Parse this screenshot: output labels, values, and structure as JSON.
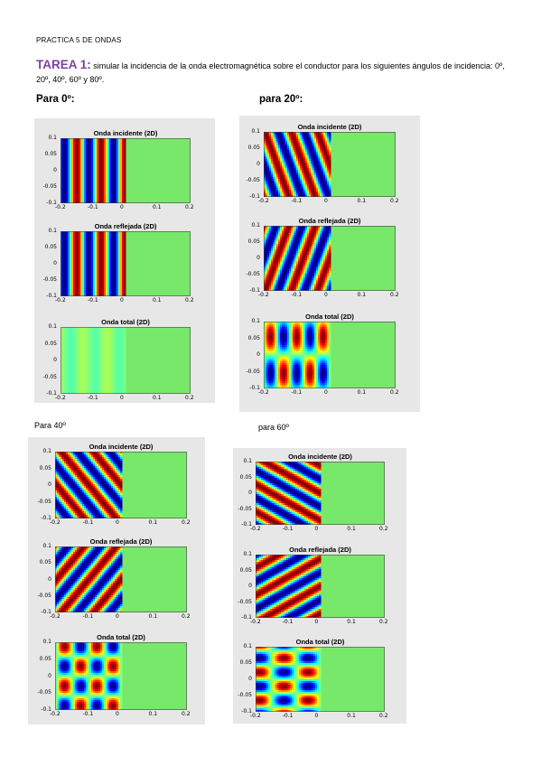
{
  "header": "PRACTICA 5 DE ONDAS",
  "task": {
    "tag": "TAREA 1:",
    "text": "simular la incidencia de la onda electromagnética sobre el conductor para los siguientes ángulos de incidencia: 0º, 20º, 40º, 60º y 80º."
  },
  "sections": [
    {
      "title": "Para 0º:",
      "angle_deg": 0
    },
    {
      "title": "para 20º:",
      "angle_deg": 20
    },
    {
      "title": "Para 40º",
      "angle_deg": 40
    },
    {
      "title": "para 60º",
      "angle_deg": 60
    }
  ],
  "plot_titles": [
    "Onda incidente (2D)",
    "Onda reflejada (2D)",
    "Onda total (2D)"
  ],
  "axes": {
    "x_ticks": [
      "-0.2",
      "-0.1",
      "0",
      "0.1",
      "0.2"
    ],
    "y_ticks": [
      "0.1",
      "0.05",
      "0",
      "-0.05",
      "-0.1"
    ],
    "x_range": [
      -0.2,
      0.2
    ],
    "y_range": [
      -0.1,
      0.1
    ],
    "conductor_boundary_x": 0
  },
  "colors": {
    "task_tag": "#7b3fa0",
    "conductor": "#78e86a",
    "panel_background": "#e7e7e7",
    "colormap": "jet"
  }
}
